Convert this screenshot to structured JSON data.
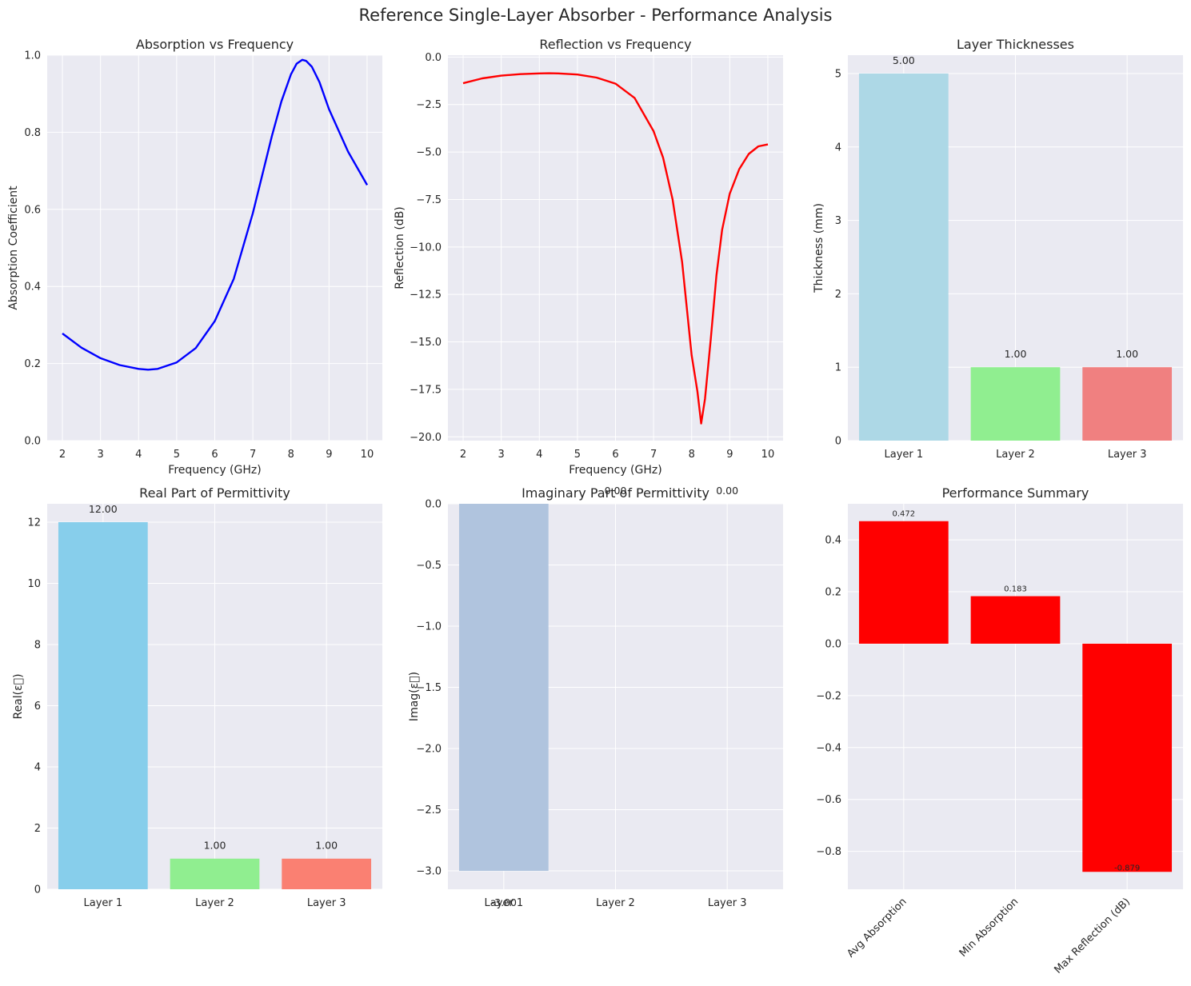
{
  "suptitle": "Reference Single-Layer Absorber - Performance Analysis",
  "chart_data": [
    {
      "type": "line",
      "title": "Absorption vs Frequency",
      "xlabel": "Frequency (GHz)",
      "ylabel": "Absorption Coefficient",
      "xlim": [
        1.6,
        10.4
      ],
      "ylim": [
        0.0,
        1.0
      ],
      "xticks": [
        2,
        3,
        4,
        5,
        6,
        7,
        8,
        9,
        10
      ],
      "yticks": [
        0.0,
        0.2,
        0.4,
        0.6,
        0.8,
        1.0
      ],
      "grid": true,
      "color": "#0000ff",
      "series": [
        {
          "x": [
            2.0,
            2.5,
            3.0,
            3.5,
            4.0,
            4.25,
            4.5,
            5.0,
            5.5,
            6.0,
            6.5,
            7.0,
            7.5,
            7.75,
            8.0,
            8.15,
            8.3,
            8.4,
            8.55,
            8.75,
            9.0,
            9.5,
            10.0
          ],
          "y": [
            0.278,
            0.241,
            0.214,
            0.196,
            0.186,
            0.184,
            0.186,
            0.203,
            0.24,
            0.31,
            0.42,
            0.59,
            0.79,
            0.88,
            0.95,
            0.978,
            0.988,
            0.985,
            0.97,
            0.93,
            0.86,
            0.75,
            0.663
          ]
        }
      ]
    },
    {
      "type": "line",
      "title": "Reflection vs Frequency",
      "xlabel": "Frequency (GHz)",
      "ylabel": "Reflection (dB)",
      "xlim": [
        1.6,
        10.4
      ],
      "ylim": [
        -20.2,
        0.1
      ],
      "xticks": [
        2,
        3,
        4,
        5,
        6,
        7,
        8,
        9,
        10
      ],
      "yticks": [
        0.0,
        -2.5,
        -5.0,
        -7.5,
        -10.0,
        -12.5,
        -15.0,
        -17.5,
        -20.0
      ],
      "ytick_labels": [
        "0.0",
        "−2.5",
        "−5.0",
        "−7.5",
        "−10.0",
        "−12.5",
        "−15.0",
        "−17.5",
        "−20.0"
      ],
      "grid": true,
      "color": "#ff0000",
      "series": [
        {
          "x": [
            2.0,
            2.5,
            3.0,
            3.5,
            4.0,
            4.25,
            4.5,
            5.0,
            5.5,
            6.0,
            6.5,
            7.0,
            7.25,
            7.5,
            7.75,
            8.0,
            8.15,
            8.25,
            8.35,
            8.5,
            8.65,
            8.8,
            9.0,
            9.25,
            9.5,
            9.75,
            10.0
          ],
          "y": [
            -1.38,
            -1.12,
            -0.98,
            -0.9,
            -0.86,
            -0.85,
            -0.86,
            -0.92,
            -1.08,
            -1.4,
            -2.15,
            -3.9,
            -5.3,
            -7.5,
            -10.8,
            -15.7,
            -17.6,
            -19.3,
            -18.0,
            -14.9,
            -11.5,
            -9.1,
            -7.2,
            -5.9,
            -5.1,
            -4.7,
            -4.6
          ]
        }
      ]
    },
    {
      "type": "bar",
      "title": "Layer Thicknesses",
      "xlabel": "",
      "ylabel": "Thickness (mm)",
      "categories": [
        "Layer 1",
        "Layer 2",
        "Layer 3"
      ],
      "values": [
        5.0,
        1.0,
        1.0
      ],
      "labels": [
        "5.00",
        "1.00",
        "1.00"
      ],
      "colors": [
        "#add8e6",
        "#90ee90",
        "#f08080"
      ],
      "ylim": [
        0,
        5.25
      ],
      "yticks": [
        0,
        1,
        2,
        3,
        4,
        5
      ],
      "grid": true
    },
    {
      "type": "bar",
      "title": "Real Part of Permittivity",
      "xlabel": "",
      "ylabel": "Real(ε⃝)",
      "categories": [
        "Layer 1",
        "Layer 2",
        "Layer 3"
      ],
      "values": [
        12.0,
        1.0,
        1.0
      ],
      "labels": [
        "12.00",
        "1.00",
        "1.00"
      ],
      "colors": [
        "#87ceeb",
        "#90ee90",
        "#fa8072"
      ],
      "ylim": [
        0,
        12.6
      ],
      "yticks": [
        0,
        2,
        4,
        6,
        8,
        10,
        12
      ],
      "grid": true
    },
    {
      "type": "bar",
      "title": "Imaginary Part of Permittivity",
      "xlabel": "",
      "ylabel": "Imag(ε⃝)",
      "categories": [
        "Layer 1",
        "Layer 2",
        "Layer 3"
      ],
      "values": [
        -3.0,
        0.0,
        0.0
      ],
      "labels": [
        "-3.00",
        "0.00",
        "0.00"
      ],
      "colors": [
        "#b0c4de",
        "#b0c4de",
        "#b0c4de"
      ],
      "ylim": [
        -3.15,
        0.0
      ],
      "yticks": [
        0.0,
        -0.5,
        -1.0,
        -1.5,
        -2.0,
        -2.5,
        -3.0
      ],
      "ytick_labels": [
        "0.0",
        "−0.5",
        "−1.0",
        "−1.5",
        "−2.0",
        "−2.5",
        "−3.0"
      ],
      "grid": true
    },
    {
      "type": "bar",
      "title": "Performance Summary",
      "xlabel": "",
      "ylabel": "",
      "categories": [
        "Avg Absorption",
        "Min Absorption",
        "Max Reflection (dB)"
      ],
      "values": [
        0.472,
        0.183,
        -0.879
      ],
      "labels": [
        "0.472",
        "0.183",
        "-0.879"
      ],
      "colors": [
        "#ff0000",
        "#ff0000",
        "#ff0000"
      ],
      "ylim": [
        -0.946,
        0.539
      ],
      "yticks": [
        0.4,
        0.2,
        0.0,
        -0.2,
        -0.4,
        -0.6,
        -0.8
      ],
      "ytick_labels": [
        "0.4",
        "0.2",
        "0.0",
        "−0.2",
        "−0.4",
        "−0.6",
        "−0.8"
      ],
      "grid": true,
      "rotate_xticks": 45
    }
  ]
}
